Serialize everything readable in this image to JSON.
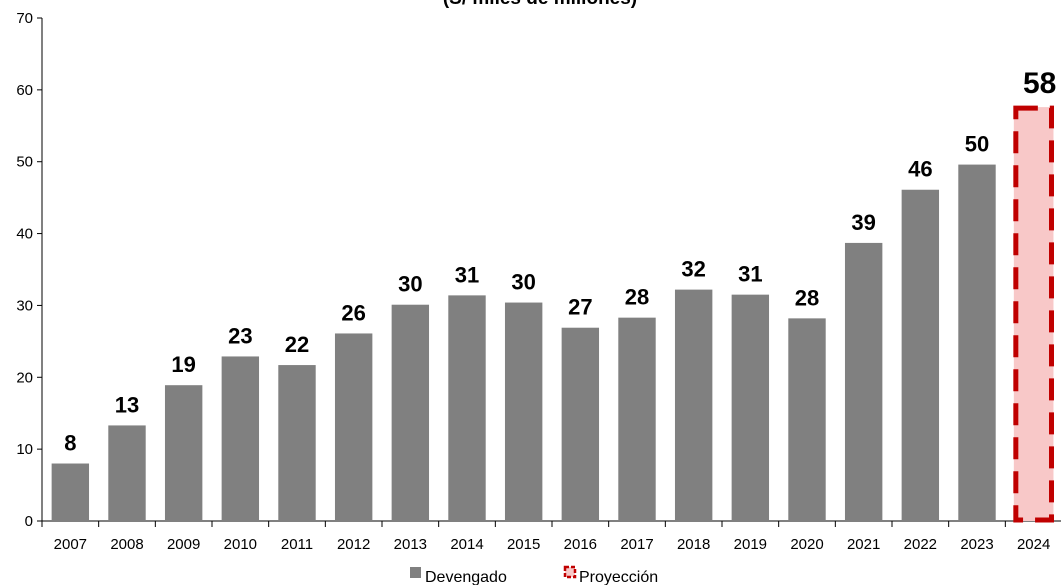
{
  "chart_data": {
    "type": "bar",
    "title": "(S/ miles de millones)",
    "categories": [
      "2007",
      "2008",
      "2009",
      "2010",
      "2011",
      "2012",
      "2013",
      "2014",
      "2015",
      "2016",
      "2017",
      "2018",
      "2019",
      "2020",
      "2021",
      "2022",
      "2023",
      "2024"
    ],
    "series": [
      {
        "name": "Devengado",
        "color": "#808080",
        "values": [
          8.0,
          13.3,
          18.9,
          22.9,
          21.7,
          26.1,
          30.1,
          31.4,
          30.4,
          26.9,
          28.3,
          32.2,
          31.5,
          28.2,
          38.7,
          46.1,
          49.6,
          null
        ],
        "labels": [
          "8",
          "13",
          "19",
          "23",
          "22",
          "26",
          "30",
          "31",
          "30",
          "27",
          "28",
          "32",
          "31",
          "28",
          "39",
          "46",
          "50",
          ""
        ]
      },
      {
        "name": "Proyección",
        "fill_color": "#f8c8c8",
        "border_color": "#c00000",
        "values": [
          null,
          null,
          null,
          null,
          null,
          null,
          null,
          null,
          null,
          null,
          null,
          null,
          null,
          null,
          null,
          null,
          null,
          57.6
        ],
        "labels": [
          "",
          "",
          "",
          "",
          "",
          "",
          "",
          "",
          "",
          "",
          "",
          "",
          "",
          "",
          "",
          "",
          "",
          "58"
        ]
      }
    ],
    "ylim": [
      0,
      70
    ],
    "yticks": [
      0,
      10,
      20,
      30,
      40,
      50,
      60,
      70
    ],
    "xlabel": "",
    "ylabel": "",
    "grid": false,
    "legend_position": "bottom"
  }
}
